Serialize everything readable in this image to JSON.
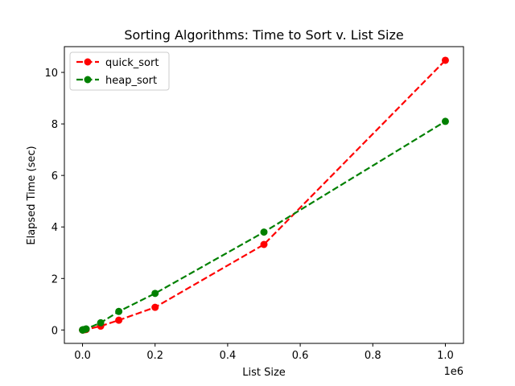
{
  "chart_data": {
    "type": "line",
    "title": "Sorting Algorithms: Time to Sort v. List Size",
    "xlabel": "List Size",
    "ylabel": "Elapsed Time (sec)",
    "x_offset_label": "1e6",
    "xlim": [
      -0.05,
      1.05
    ],
    "ylim": [
      -0.52,
      11.0
    ],
    "x_ticks": [
      0.0,
      0.2,
      0.4,
      0.6,
      0.8,
      1.0
    ],
    "x_tick_labels": [
      "0.0",
      "0.2",
      "0.4",
      "0.6",
      "0.8",
      "1.0"
    ],
    "y_ticks": [
      0,
      2,
      4,
      6,
      8,
      10
    ],
    "y_tick_labels": [
      "0",
      "2",
      "4",
      "6",
      "8",
      "10"
    ],
    "grid": false,
    "legend_position": "top-left",
    "series": [
      {
        "name": "quick_sort",
        "color": "#ff0000",
        "x": [
          0.0001,
          0.0005,
          0.001,
          0.005,
          0.01,
          0.05,
          0.1,
          0.2,
          0.5,
          1.0
        ],
        "y": [
          0.0,
          0.0,
          0.0,
          0.01,
          0.02,
          0.15,
          0.38,
          0.88,
          3.32,
          10.47
        ]
      },
      {
        "name": "heap_sort",
        "color": "#008000",
        "x": [
          0.0001,
          0.0005,
          0.001,
          0.005,
          0.01,
          0.05,
          0.1,
          0.2,
          0.5,
          1.0
        ],
        "y": [
          0.0,
          0.0,
          0.01,
          0.02,
          0.04,
          0.28,
          0.72,
          1.42,
          3.8,
          8.1
        ]
      }
    ]
  }
}
